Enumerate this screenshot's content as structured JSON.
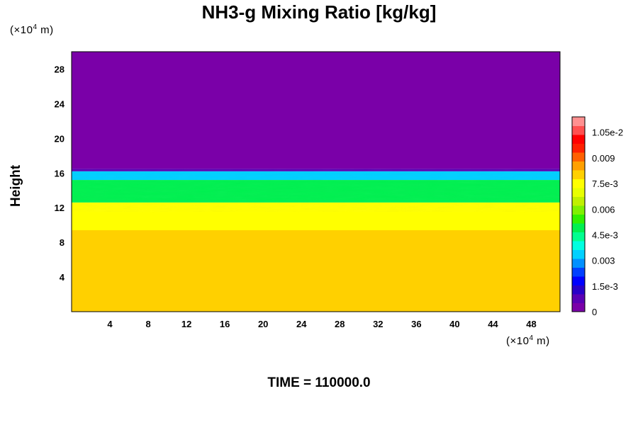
{
  "chart_data": {
    "type": "heatmap",
    "title": "NH3-g Mixing Ratio [kg/kg]",
    "ylabel": "Height",
    "x_unit": "m",
    "y_unit": "m",
    "unit_exponent": "4",
    "unit_prefix": "(×10",
    "unit_suffix": " m)",
    "xlim": [
      0,
      51
    ],
    "ylim": [
      0,
      30
    ],
    "xticks": [
      4,
      8,
      12,
      16,
      20,
      24,
      28,
      32,
      36,
      40,
      44,
      48
    ],
    "yticks": [
      4,
      8,
      12,
      16,
      20,
      24,
      28
    ],
    "layers": [
      {
        "y_bottom": 0,
        "y_top": 9.4,
        "value": 0.0078
      },
      {
        "y_bottom": 9.4,
        "y_top": 12.6,
        "value": 0.0074
      },
      {
        "y_bottom": 12.6,
        "y_top": 15.2,
        "value": 0.0051
      },
      {
        "y_bottom": 15.2,
        "y_top": 16.2,
        "value": 0.0035
      },
      {
        "y_bottom": 16.2,
        "y_top": 16.5,
        "value": 0.0008
      },
      {
        "y_bottom": 16.5,
        "y_top": 30,
        "value": 0.0
      }
    ],
    "colorbar": {
      "min": 0,
      "max": 0.0114,
      "tick_values": [
        0,
        0.0015,
        0.003,
        0.0045,
        0.006,
        0.0075,
        0.009,
        0.0105
      ],
      "tick_labels": [
        "0",
        "1.5e-3",
        "0.003",
        "4.5e-3",
        "0.006",
        "7.5e-3",
        "0.009",
        "1.05e-2"
      ],
      "colors": [
        "#7a00a8",
        "#5a00b4",
        "#2800c8",
        "#0000ff",
        "#0040ff",
        "#0090ff",
        "#00d0ff",
        "#00ffe0",
        "#00ff90",
        "#00f050",
        "#30f000",
        "#80f000",
        "#c0f000",
        "#e8ff00",
        "#ffff00",
        "#ffd000",
        "#ffa000",
        "#ff6000",
        "#ff2000",
        "#ff0000",
        "#ff5050",
        "#ff9090"
      ]
    },
    "grid": false,
    "legend": "colorbar-right"
  },
  "footer": {
    "time_label": "TIME = 110000.0"
  }
}
